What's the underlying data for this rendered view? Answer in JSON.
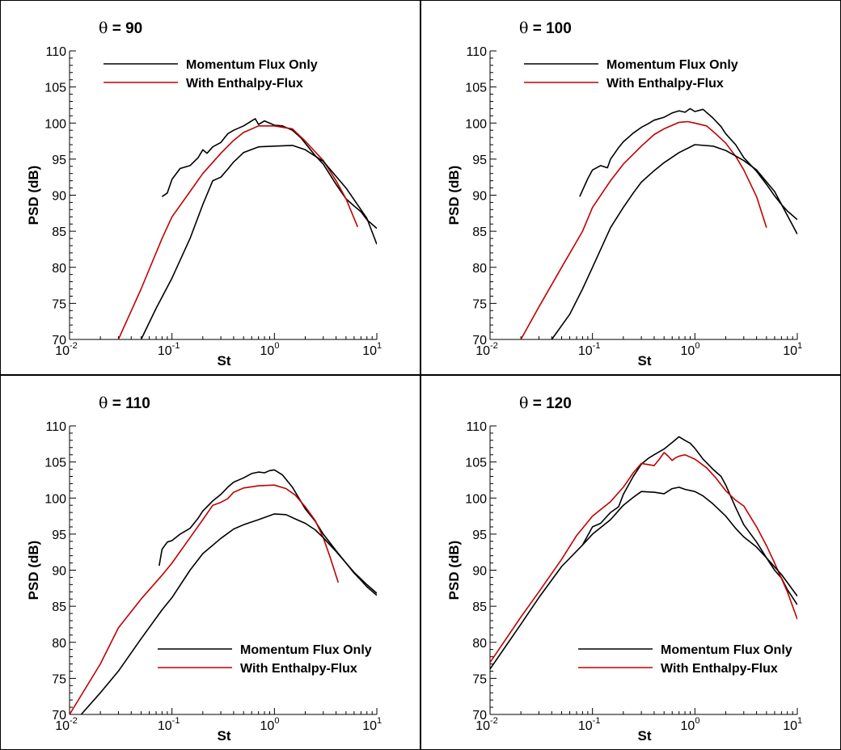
{
  "chart_data": [
    {
      "type": "line",
      "title": "θ = 90",
      "xlabel": "St",
      "ylabel": "PSD (dB)",
      "xscale": "log",
      "xlim": [
        0.01,
        10
      ],
      "ylim": [
        70,
        110
      ],
      "xticks": [
        "10-2",
        "10-1",
        "100",
        "101"
      ],
      "yticks": [
        70,
        75,
        80,
        85,
        90,
        95,
        100,
        105,
        110
      ],
      "legend_position": "top",
      "series": [
        {
          "name": "Momentum Flux Only",
          "color": "#000000",
          "x": [
            0.08,
            0.09,
            0.1,
            0.12,
            0.15,
            0.18,
            0.2,
            0.22,
            0.25,
            0.3,
            0.35,
            0.4,
            0.5,
            0.6,
            0.65,
            0.7,
            0.8,
            1.0,
            1.2,
            1.5,
            1.8,
            2.0,
            2.5,
            3.0,
            4.0,
            5.0,
            6.0,
            7.0,
            8.0,
            10.0
          ],
          "y": [
            89.8,
            90.3,
            92.2,
            93.7,
            94.1,
            95.2,
            96.3,
            95.8,
            96.7,
            97.3,
            98.5,
            99.0,
            99.6,
            100.3,
            100.6,
            99.8,
            100.3,
            99.7,
            99.6,
            99.0,
            98.0,
            97.2,
            95.5,
            94.3,
            91.5,
            89.5,
            88.5,
            87.7,
            86.6,
            85.4
          ]
        },
        {
          "name": "With Enthalpy-Flux",
          "color": "#c00000",
          "x": [
            0.03,
            0.05,
            0.08,
            0.1,
            0.15,
            0.2,
            0.3,
            0.4,
            0.5,
            0.7,
            1.0,
            1.5,
            2.0,
            3.0,
            4.0,
            5.0,
            6.5
          ],
          "y": [
            70.0,
            77.0,
            84.0,
            87.0,
            90.5,
            93.0,
            95.8,
            97.6,
            98.7,
            99.6,
            99.6,
            99.2,
            97.5,
            94.8,
            92.0,
            89.5,
            85.6
          ]
        },
        {
          "name": "",
          "color": "#000000",
          "x": [
            0.05,
            0.07,
            0.1,
            0.15,
            0.2,
            0.25,
            0.3,
            0.35,
            0.4,
            0.5,
            0.7,
            1.0,
            1.5,
            2.0,
            3.0,
            5.0,
            8.0,
            10.0
          ],
          "y": [
            70.0,
            74.3,
            78.5,
            84.0,
            88.7,
            92.0,
            92.5,
            93.6,
            94.6,
            95.9,
            96.7,
            96.8,
            96.9,
            96.3,
            94.7,
            91.0,
            86.8,
            83.2
          ]
        }
      ]
    },
    {
      "type": "line",
      "title": "θ = 100",
      "xlabel": "St",
      "ylabel": "PSD (dB)",
      "xscale": "log",
      "xlim": [
        0.01,
        10
      ],
      "ylim": [
        70,
        110
      ],
      "xticks": [
        "10-2",
        "10-1",
        "100",
        "101"
      ],
      "yticks": [
        70,
        75,
        80,
        85,
        90,
        95,
        100,
        105,
        110
      ],
      "legend_position": "top",
      "series": [
        {
          "name": "Momentum Flux Only",
          "color": "#000000",
          "x": [
            0.075,
            0.09,
            0.1,
            0.12,
            0.14,
            0.15,
            0.18,
            0.2,
            0.25,
            0.3,
            0.35,
            0.4,
            0.5,
            0.6,
            0.7,
            0.8,
            0.9,
            1.0,
            1.2,
            1.5,
            1.8,
            2.0,
            2.5,
            3.0,
            4.0,
            5.0,
            6.0,
            7.0,
            8.0,
            10.0
          ],
          "y": [
            89.8,
            92.3,
            93.5,
            94.1,
            93.8,
            95.0,
            96.6,
            97.4,
            98.6,
            99.4,
            99.9,
            100.4,
            100.8,
            101.4,
            101.7,
            101.5,
            102.0,
            101.6,
            101.9,
            100.7,
            99.5,
            98.5,
            97.0,
            95.2,
            93.3,
            91.5,
            89.9,
            88.7,
            87.8,
            86.6
          ]
        },
        {
          "name": "With Enthalpy-Flux",
          "color": "#c00000",
          "x": [
            0.02,
            0.03,
            0.05,
            0.08,
            0.1,
            0.15,
            0.2,
            0.3,
            0.4,
            0.5,
            0.7,
            0.85,
            1.0,
            1.3,
            1.6,
            2.0,
            2.5,
            3.0,
            4.0,
            5.0
          ],
          "y": [
            70.0,
            74.5,
            80.0,
            85.0,
            88.3,
            92.0,
            94.3,
            96.8,
            98.4,
            99.2,
            100.1,
            100.2,
            100.0,
            99.6,
            98.5,
            97.2,
            95.4,
            93.5,
            89.8,
            85.5
          ]
        },
        {
          "name": "",
          "color": "#000000",
          "x": [
            0.04,
            0.06,
            0.08,
            0.1,
            0.15,
            0.2,
            0.25,
            0.3,
            0.4,
            0.5,
            0.7,
            1.0,
            1.5,
            2.0,
            3.0,
            4.0,
            6.0,
            10.0
          ],
          "y": [
            70.0,
            73.5,
            77.0,
            80.0,
            85.5,
            88.3,
            90.3,
            91.8,
            93.4,
            94.5,
            95.9,
            97.0,
            96.8,
            96.2,
            94.8,
            93.5,
            90.5,
            84.6
          ]
        }
      ]
    },
    {
      "type": "line",
      "title": "θ = 110",
      "xlabel": "St",
      "ylabel": "PSD (dB)",
      "xscale": "log",
      "xlim": [
        0.01,
        10
      ],
      "ylim": [
        70,
        110
      ],
      "xticks": [
        "10-2",
        "10-1",
        "100",
        "101"
      ],
      "yticks": [
        70,
        75,
        80,
        85,
        90,
        95,
        100,
        105,
        110
      ],
      "legend_position": "bottom",
      "series": [
        {
          "name": "Momentum Flux Only",
          "color": "#000000",
          "x": [
            0.075,
            0.08,
            0.09,
            0.1,
            0.12,
            0.15,
            0.18,
            0.2,
            0.25,
            0.3,
            0.35,
            0.4,
            0.5,
            0.6,
            0.7,
            0.8,
            0.9,
            1.0,
            1.2,
            1.5,
            1.8,
            2.0,
            2.5,
            3.0,
            4.0,
            5.0,
            6.0,
            7.0,
            8.0,
            10.0
          ],
          "y": [
            90.6,
            92.9,
            93.9,
            94.1,
            95.0,
            95.8,
            97.2,
            98.2,
            99.6,
            100.5,
            101.5,
            102.2,
            102.8,
            103.4,
            103.6,
            103.5,
            103.8,
            103.9,
            103.2,
            101.5,
            99.6,
            98.5,
            96.8,
            95.0,
            92.7,
            91.0,
            89.6,
            88.6,
            87.7,
            86.5
          ]
        },
        {
          "name": "With Enthalpy-Flux",
          "color": "#c00000",
          "x": [
            0.01,
            0.02,
            0.03,
            0.05,
            0.08,
            0.1,
            0.15,
            0.2,
            0.25,
            0.3,
            0.35,
            0.4,
            0.5,
            0.7,
            1.0,
            1.3,
            1.6,
            2.0,
            2.5,
            3.0,
            3.5,
            4.2
          ],
          "y": [
            70.0,
            77.0,
            82.0,
            86.0,
            89.3,
            91.0,
            94.5,
            97.0,
            99.0,
            99.4,
            99.9,
            100.8,
            101.4,
            101.7,
            101.8,
            101.3,
            100.4,
            98.8,
            96.9,
            94.5,
            91.8,
            88.3
          ]
        },
        {
          "name": "",
          "color": "#000000",
          "x": [
            0.013,
            0.02,
            0.03,
            0.05,
            0.08,
            0.1,
            0.15,
            0.2,
            0.3,
            0.4,
            0.5,
            0.7,
            1.0,
            1.3,
            1.6,
            2.0,
            2.5,
            3.0,
            4.0,
            5.0,
            6.0,
            8.0,
            10.0
          ],
          "y": [
            70.0,
            73.0,
            76.0,
            80.5,
            84.5,
            86.2,
            90.0,
            92.3,
            94.4,
            95.7,
            96.3,
            97.0,
            97.8,
            97.7,
            97.1,
            96.5,
            95.6,
            94.5,
            92.6,
            91.0,
            89.7,
            88.0,
            86.8
          ]
        }
      ]
    },
    {
      "type": "line",
      "title": "θ = 120",
      "xlabel": "St",
      "ylabel": "PSD (dB)",
      "xscale": "log",
      "xlim": [
        0.01,
        10
      ],
      "ylim": [
        70,
        110
      ],
      "xticks": [
        "10-2",
        "10-1",
        "100",
        "101"
      ],
      "yticks": [
        70,
        75,
        80,
        85,
        90,
        95,
        100,
        105,
        110
      ],
      "legend_position": "bottom",
      "series": [
        {
          "name": "Momentum Flux Only",
          "color": "#000000",
          "x": [
            0.08,
            0.1,
            0.12,
            0.15,
            0.18,
            0.2,
            0.25,
            0.3,
            0.35,
            0.4,
            0.5,
            0.6,
            0.7,
            0.8,
            0.9,
            1.0,
            1.2,
            1.5,
            1.8,
            2.0,
            2.5,
            3.0,
            4.0,
            5.0,
            6.0,
            7.0,
            8.0,
            9.0,
            10.0
          ],
          "y": [
            93.5,
            96.0,
            96.5,
            98.0,
            98.8,
            100.5,
            103.0,
            104.7,
            105.5,
            106.0,
            106.8,
            107.7,
            108.5,
            108.0,
            107.6,
            106.9,
            105.4,
            104.0,
            103.0,
            101.8,
            98.7,
            96.3,
            93.9,
            91.7,
            90.0,
            88.9,
            87.3,
            86.2,
            85.2
          ]
        },
        {
          "name": "With Enthalpy-Flux",
          "color": "#c00000",
          "x": [
            0.01,
            0.02,
            0.03,
            0.05,
            0.07,
            0.1,
            0.15,
            0.2,
            0.25,
            0.3,
            0.4,
            0.45,
            0.5,
            0.55,
            0.6,
            0.65,
            0.7,
            0.8,
            1.0,
            1.3,
            1.6,
            2.0,
            2.5,
            3.0,
            4.0,
            5.0,
            6.0,
            8.0,
            10.0
          ],
          "y": [
            77.2,
            83.5,
            87.0,
            91.5,
            94.8,
            97.5,
            99.5,
            101.5,
            103.5,
            104.8,
            104.5,
            105.4,
            106.3,
            105.8,
            105.2,
            105.6,
            105.8,
            106.0,
            105.4,
            104.2,
            102.8,
            101.0,
            99.7,
            98.9,
            96.0,
            93.4,
            91.0,
            87.0,
            83.2
          ]
        },
        {
          "name": "",
          "color": "#000000",
          "x": [
            0.01,
            0.02,
            0.03,
            0.05,
            0.08,
            0.1,
            0.15,
            0.2,
            0.25,
            0.3,
            0.4,
            0.5,
            0.6,
            0.7,
            0.8,
            1.0,
            1.2,
            1.5,
            2.0,
            2.5,
            3.0,
            4.0,
            5.0,
            7.0,
            10.0
          ],
          "y": [
            76.3,
            82.5,
            86.2,
            90.5,
            93.5,
            95.0,
            97.0,
            99.0,
            100.1,
            100.9,
            100.8,
            100.6,
            101.3,
            101.5,
            101.2,
            100.9,
            100.3,
            99.2,
            97.5,
            95.8,
            94.6,
            93.2,
            91.7,
            89.4,
            86.4
          ]
        }
      ]
    }
  ]
}
